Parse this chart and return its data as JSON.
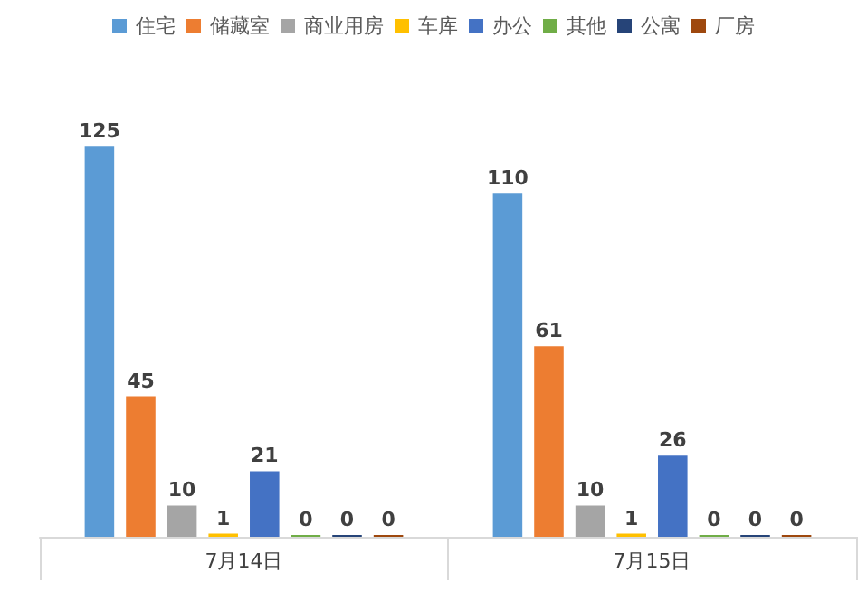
{
  "chart_data": {
    "type": "bar",
    "categories": [
      "7月14日",
      "7月15日"
    ],
    "series": [
      {
        "name": "住宅",
        "color": "#5b9bd5",
        "values": [
          125,
          110
        ]
      },
      {
        "name": "储藏室",
        "color": "#ed7d31",
        "values": [
          45,
          61
        ]
      },
      {
        "name": "商业用房",
        "color": "#a5a5a5",
        "values": [
          10,
          10
        ]
      },
      {
        "name": "车库",
        "color": "#ffc000",
        "values": [
          1,
          1
        ]
      },
      {
        "name": "办公",
        "color": "#4472c4",
        "values": [
          21,
          26
        ]
      },
      {
        "name": "其他",
        "color": "#70ad47",
        "values": [
          0,
          0
        ]
      },
      {
        "name": "公寓",
        "color": "#264478",
        "values": [
          0,
          0
        ]
      },
      {
        "name": "厂房",
        "color": "#9e480e",
        "values": [
          0,
          0
        ]
      }
    ],
    "data_labels": true,
    "legend": "top",
    "grid": false
  }
}
